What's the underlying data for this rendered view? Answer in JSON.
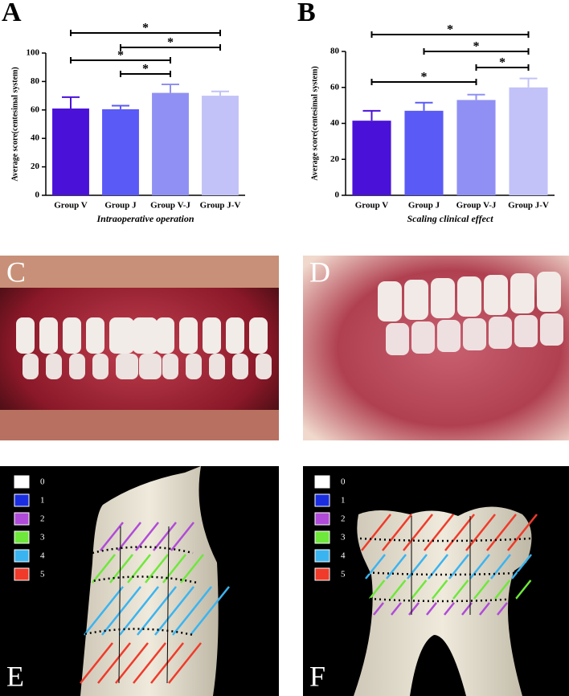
{
  "chart_data": [
    {
      "type": "bar",
      "panel": "A",
      "y_label": "Average score(centesimal system)",
      "x_label": "Intraoperative operation",
      "categories": [
        "Group V",
        "Group J",
        "Group V-J",
        "Group J-V"
      ],
      "values": [
        61,
        60.5,
        72,
        70
      ],
      "errors": [
        8,
        2.5,
        6,
        3
      ],
      "colors": [
        "#4a12d8",
        "#5a5af6",
        "#9090f4",
        "#c2c2f8"
      ],
      "ylim": [
        0,
        100
      ],
      "yticks": [
        0,
        20,
        40,
        60,
        80,
        100
      ],
      "annotations": [
        {
          "from": 0,
          "to": 3,
          "label": "*"
        },
        {
          "from": 1,
          "to": 3,
          "label": "*"
        },
        {
          "from": 0,
          "to": 2,
          "label": "*"
        },
        {
          "from": 1,
          "to": 2,
          "label": "*"
        }
      ]
    },
    {
      "type": "bar",
      "panel": "B",
      "y_label": "Average score(centesimal system)",
      "x_label": "Scaling clinical effect",
      "categories": [
        "Group V",
        "Group J",
        "Group V-J",
        "Group J-V"
      ],
      "values": [
        41.5,
        47,
        53,
        60
      ],
      "errors": [
        5.5,
        4.5,
        3,
        5
      ],
      "colors": [
        "#4a12d8",
        "#5a5af6",
        "#9090f4",
        "#c2c2f8"
      ],
      "ylim": [
        0,
        80
      ],
      "yticks": [
        0,
        20,
        40,
        60,
        80
      ],
      "annotations": [
        {
          "from": 0,
          "to": 3,
          "label": "*"
        },
        {
          "from": 1,
          "to": 3,
          "label": "*"
        },
        {
          "from": 2,
          "to": 3,
          "label": "*"
        },
        {
          "from": 0,
          "to": 2,
          "label": "*"
        }
      ]
    }
  ],
  "photo_panels": [
    "C",
    "D",
    "E",
    "F"
  ],
  "legend": [
    {
      "label": "0",
      "color": "#ffffff"
    },
    {
      "label": "1",
      "color": "#1a2ee0"
    },
    {
      "label": "2",
      "color": "#b04ad8"
    },
    {
      "label": "3",
      "color": "#6ee83a"
    },
    {
      "label": "4",
      "color": "#3ab4f0"
    },
    {
      "label": "5",
      "color": "#f03a2a"
    }
  ]
}
